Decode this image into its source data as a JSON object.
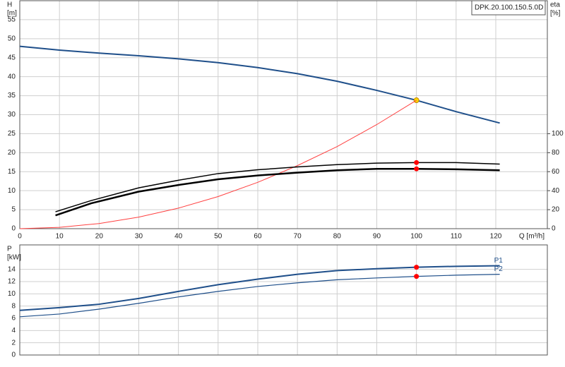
{
  "chart_data": [
    {
      "type": "line",
      "title": "DPK.20.100.150.5.0D",
      "xlabel": "Q [m³/h]",
      "ylabel": [
        "H",
        "[m]"
      ],
      "y2label": [
        "eta",
        "[%]"
      ],
      "xlim": [
        0,
        133
      ],
      "xticks": [
        0,
        10,
        20,
        30,
        40,
        50,
        60,
        70,
        80,
        90,
        100,
        110,
        120
      ],
      "ylim": [
        0,
        60
      ],
      "yticks": [
        0,
        5,
        10,
        15,
        20,
        25,
        30,
        35,
        40,
        45,
        50,
        55
      ],
      "y2lim": [
        0,
        240
      ],
      "y2ticks": [
        0,
        20,
        40,
        60,
        80,
        100
      ],
      "grid": true,
      "duty_point": 100,
      "series": [
        {
          "color": "#1f4f8a",
          "width": 2,
          "marker_color": "#ffd700",
          "x": [
            0,
            10,
            20,
            30,
            40,
            50,
            60,
            70,
            80,
            90,
            100,
            110,
            121
          ],
          "values": [
            48,
            47,
            46.2,
            45.5,
            44.7,
            43.7,
            42.4,
            40.8,
            38.8,
            36.4,
            33.8,
            30.8,
            27.8
          ]
        },
        {
          "color": "#ff4040",
          "width": 1,
          "x": [
            0,
            10,
            20,
            30,
            40,
            50,
            60,
            70,
            80,
            90,
            100
          ],
          "values": [
            0,
            0.34,
            1.35,
            3.04,
            5.41,
            8.45,
            12.2,
            16.6,
            21.6,
            27.4,
            33.8
          ]
        },
        {
          "color": "#000000",
          "width": 1.5,
          "axis": "y2",
          "marker_color": "#ff0000",
          "x": [
            9,
            18,
            30,
            40,
            50,
            60,
            70,
            80,
            90,
            100,
            110,
            121
          ],
          "values": [
            17.8,
            29.6,
            43,
            51,
            58,
            62,
            65,
            67.4,
            69,
            69.6,
            69.6,
            68
          ]
        },
        {
          "color": "#000000",
          "width": 2.5,
          "axis": "y2",
          "marker_color": "#ff0000",
          "x": [
            9,
            18,
            30,
            40,
            50,
            60,
            70,
            80,
            90,
            100,
            110,
            121
          ],
          "values": [
            14,
            26.7,
            39,
            46,
            52,
            56,
            59,
            61.5,
            63,
            63,
            62.5,
            61.5
          ]
        }
      ]
    },
    {
      "type": "line",
      "ylabel": [
        "P",
        "[kW]"
      ],
      "xlim": [
        0,
        133
      ],
      "xticks": [
        0,
        10,
        20,
        30,
        40,
        50,
        60,
        70,
        80,
        90,
        100,
        110,
        120
      ],
      "ylim": [
        0,
        18
      ],
      "yticks": [
        0,
        2,
        4,
        6,
        8,
        10,
        12,
        14
      ],
      "grid": true,
      "duty_point": 100,
      "series": [
        {
          "name": "P1",
          "color": "#1f4f8a",
          "width": 2,
          "marker_color": "#ff0000",
          "x": [
            0,
            10,
            20,
            30,
            40,
            50,
            60,
            70,
            80,
            90,
            100,
            110,
            121
          ],
          "values": [
            7.3,
            7.75,
            8.3,
            9.25,
            10.4,
            11.5,
            12.4,
            13.2,
            13.8,
            14.1,
            14.35,
            14.5,
            14.6
          ]
        },
        {
          "name": "P2",
          "color": "#1f4f8a",
          "width": 1.2,
          "marker_color": "#ff0000",
          "x": [
            0,
            10,
            20,
            30,
            40,
            50,
            60,
            70,
            80,
            90,
            100,
            110,
            121
          ],
          "values": [
            6.25,
            6.7,
            7.5,
            8.45,
            9.5,
            10.4,
            11.2,
            11.8,
            12.3,
            12.6,
            12.85,
            13.05,
            13.2
          ]
        }
      ]
    }
  ]
}
